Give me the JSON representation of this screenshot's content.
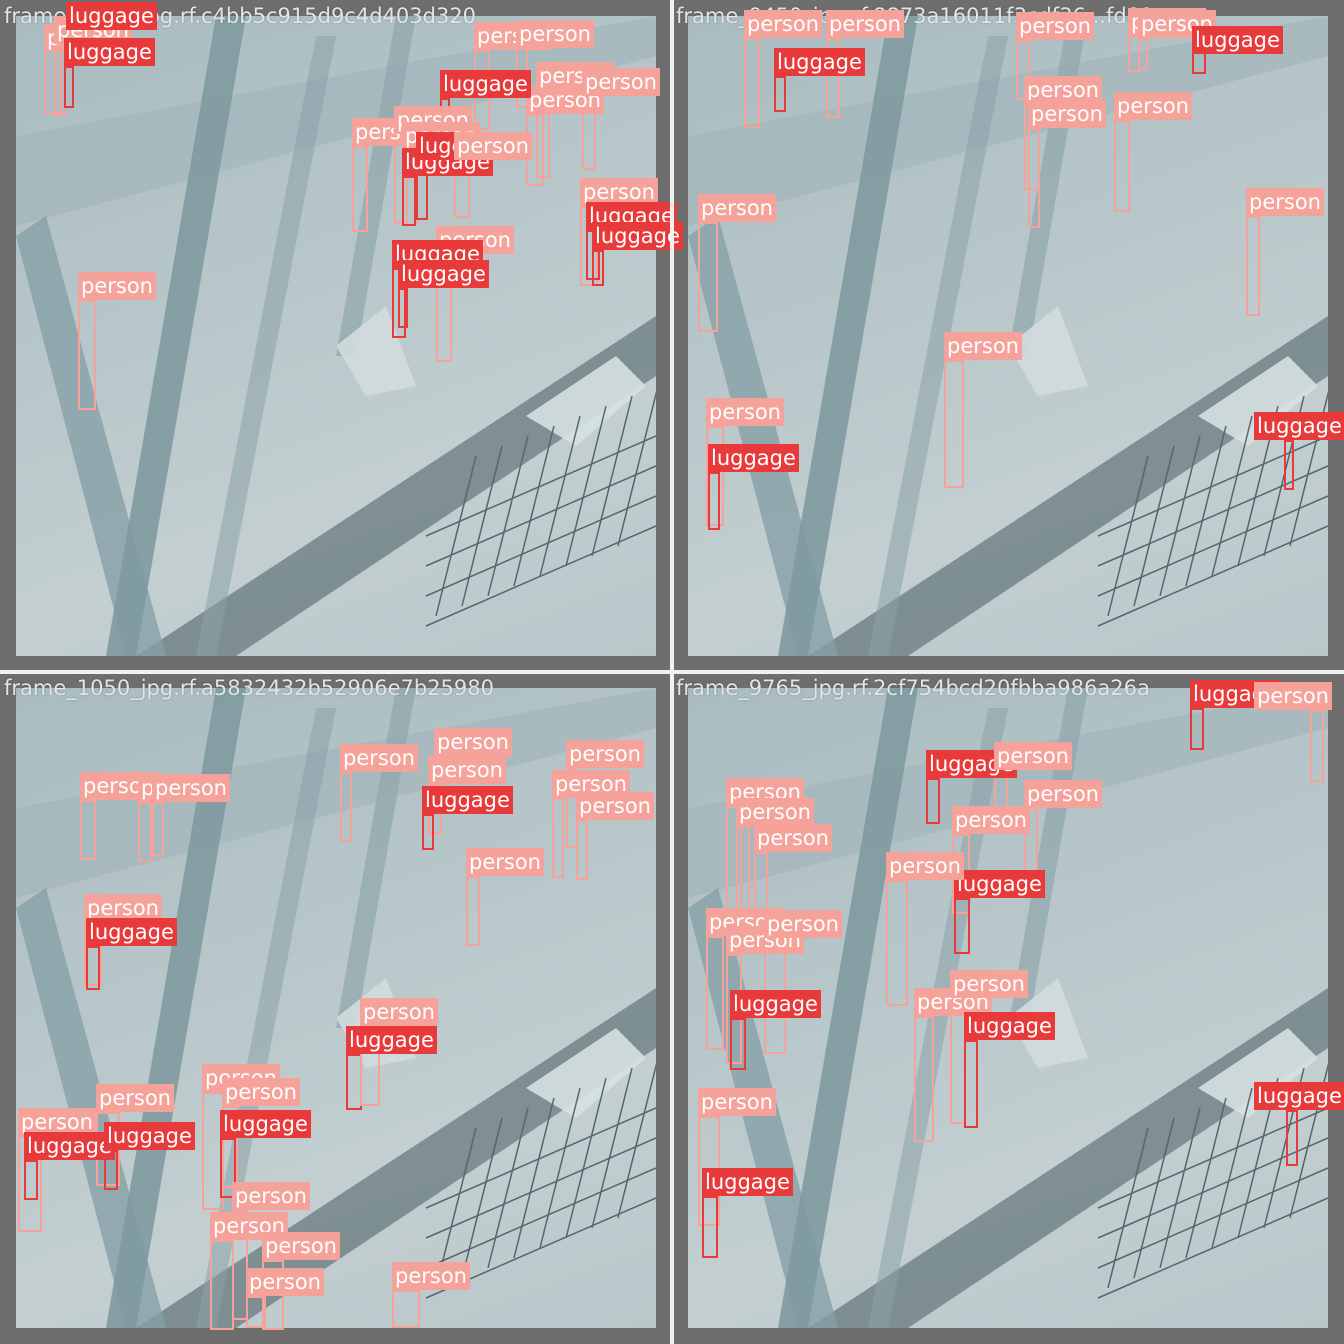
{
  "labels": {
    "person": "person",
    "luggage": "luggage"
  },
  "colors": {
    "person": "#f4a29a",
    "luggage": "#e83a3a"
  },
  "tiles": [
    {
      "filename": "frame_9765_jpg.rf.c4bb5c915d9c4d403d320"
    },
    {
      "filename": "frame_9450_jpg.rf.8873a16011f3cdf36...fd80"
    },
    {
      "filename": "frame_1050_jpg.rf.a5832432b52906e7b25980"
    },
    {
      "filename": "frame_9765_jpg.rf.2cf754bcd20fbba986a26a"
    }
  ]
}
